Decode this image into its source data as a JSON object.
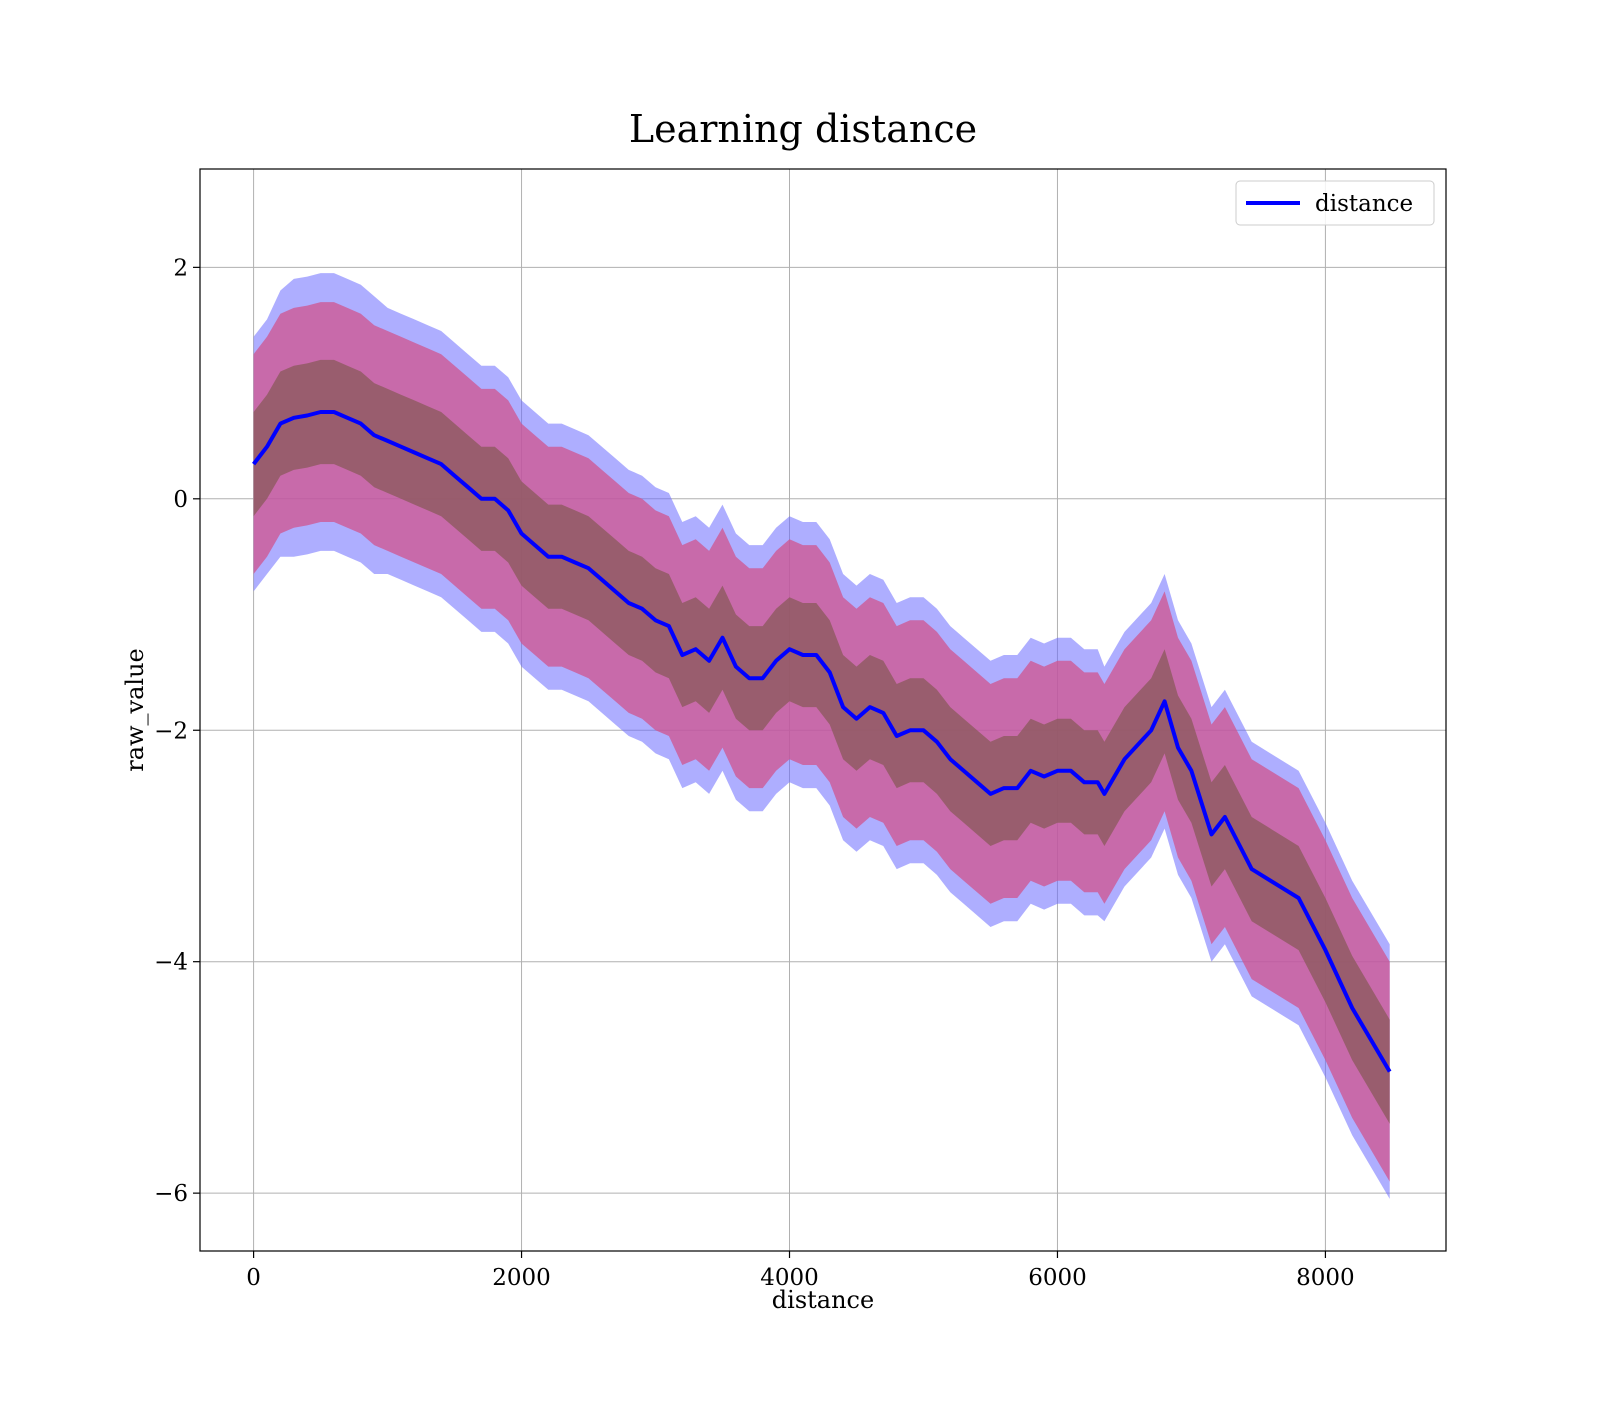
{
  "chart_data": {
    "type": "line",
    "title": "Learning distance",
    "xlabel": "distance",
    "ylabel": "raw_value",
    "xlim": [
      -400,
      8900
    ],
    "ylim": [
      -6.5,
      2.85
    ],
    "xticks": [
      0,
      2000,
      4000,
      6000,
      8000
    ],
    "xtick_labels": [
      "0",
      "2000",
      "4000",
      "6000",
      "8000"
    ],
    "yticks": [
      -6,
      -4,
      -2,
      0,
      2
    ],
    "ytick_labels": [
      "−6",
      "−4",
      "−2",
      "0",
      "2"
    ],
    "grid": true,
    "legend": {
      "placement": "top-right",
      "entries": [
        "distance"
      ]
    },
    "colors": {
      "line": "#0000ff",
      "outer_band": "#6b6bff",
      "middle_band": "#d0538e",
      "inner_band": "#8a5a5a"
    },
    "series": [
      {
        "name": "distance",
        "x": [
          0,
          100,
          200,
          300,
          400,
          500,
          600,
          700,
          800,
          900,
          1000,
          1100,
          1200,
          1300,
          1400,
          1500,
          1600,
          1700,
          1800,
          1900,
          2000,
          2100,
          2200,
          2300,
          2400,
          2500,
          2600,
          2700,
          2800,
          2900,
          3000,
          3100,
          3200,
          3300,
          3400,
          3500,
          3600,
          3700,
          3800,
          3900,
          4000,
          4100,
          4200,
          4300,
          4400,
          4500,
          4600,
          4700,
          4800,
          4900,
          5000,
          5100,
          5200,
          5300,
          5400,
          5500,
          5600,
          5700,
          5800,
          5900,
          6000,
          6100,
          6200,
          6300,
          6350,
          6500,
          6700,
          6800,
          6900,
          7000,
          7150,
          7250,
          7450,
          7800,
          8000,
          8200,
          8480
        ],
        "y": [
          0.3,
          0.45,
          0.65,
          0.7,
          0.72,
          0.75,
          0.75,
          0.7,
          0.65,
          0.55,
          0.5,
          0.45,
          0.4,
          0.35,
          0.3,
          0.2,
          0.1,
          0.0,
          0.0,
          -0.1,
          -0.3,
          -0.4,
          -0.5,
          -0.5,
          -0.55,
          -0.6,
          -0.7,
          -0.8,
          -0.9,
          -0.95,
          -1.05,
          -1.1,
          -1.35,
          -1.3,
          -1.4,
          -1.2,
          -1.45,
          -1.55,
          -1.55,
          -1.4,
          -1.3,
          -1.35,
          -1.35,
          -1.5,
          -1.8,
          -1.9,
          -1.8,
          -1.85,
          -2.05,
          -2.0,
          -2.0,
          -2.1,
          -2.25,
          -2.35,
          -2.45,
          -2.55,
          -2.5,
          -2.5,
          -2.35,
          -2.4,
          -2.35,
          -2.35,
          -2.45,
          -2.45,
          -2.55,
          -2.25,
          -2.0,
          -1.75,
          -2.15,
          -2.35,
          -2.9,
          -2.75,
          -3.2,
          -3.45,
          -3.9,
          -4.4,
          -4.95
        ]
      }
    ],
    "bands": {
      "outer_halfwidth": [
        1.1,
        1.1,
        1.15,
        1.2,
        1.2,
        1.2,
        1.2,
        1.2,
        1.2,
        1.2,
        1.15,
        1.15,
        1.15,
        1.15,
        1.15,
        1.15,
        1.15,
        1.15,
        1.15,
        1.15,
        1.15,
        1.15,
        1.15,
        1.15,
        1.15,
        1.15,
        1.15,
        1.15,
        1.15,
        1.15,
        1.15,
        1.15,
        1.15,
        1.15,
        1.15,
        1.15,
        1.15,
        1.15,
        1.15,
        1.15,
        1.15,
        1.15,
        1.15,
        1.15,
        1.15,
        1.15,
        1.15,
        1.15,
        1.15,
        1.15,
        1.15,
        1.15,
        1.15,
        1.15,
        1.15,
        1.15,
        1.15,
        1.15,
        1.15,
        1.15,
        1.15,
        1.15,
        1.15,
        1.15,
        1.1,
        1.1,
        1.1,
        1.1,
        1.1,
        1.1,
        1.1,
        1.1,
        1.1,
        1.1,
        1.1,
        1.1,
        1.1
      ],
      "middle_halfwidth": [
        0.95,
        0.95,
        0.95,
        0.95,
        0.95,
        0.95,
        0.95,
        0.95,
        0.95,
        0.95,
        0.95,
        0.95,
        0.95,
        0.95,
        0.95,
        0.95,
        0.95,
        0.95,
        0.95,
        0.95,
        0.95,
        0.95,
        0.95,
        0.95,
        0.95,
        0.95,
        0.95,
        0.95,
        0.95,
        0.95,
        0.95,
        0.95,
        0.95,
        0.95,
        0.95,
        0.95,
        0.95,
        0.95,
        0.95,
        0.95,
        0.95,
        0.95,
        0.95,
        0.95,
        0.95,
        0.95,
        0.95,
        0.95,
        0.95,
        0.95,
        0.95,
        0.95,
        0.95,
        0.95,
        0.95,
        0.95,
        0.95,
        0.95,
        0.95,
        0.95,
        0.95,
        0.95,
        0.95,
        0.95,
        0.95,
        0.95,
        0.95,
        0.95,
        0.95,
        0.95,
        0.95,
        0.95,
        0.95,
        0.95,
        0.95,
        0.95,
        0.95
      ],
      "inner_halfwidth": [
        0.45,
        0.45,
        0.45,
        0.45,
        0.45,
        0.45,
        0.45,
        0.45,
        0.45,
        0.45,
        0.45,
        0.45,
        0.45,
        0.45,
        0.45,
        0.45,
        0.45,
        0.45,
        0.45,
        0.45,
        0.45,
        0.45,
        0.45,
        0.45,
        0.45,
        0.45,
        0.45,
        0.45,
        0.45,
        0.45,
        0.45,
        0.45,
        0.45,
        0.45,
        0.45,
        0.45,
        0.45,
        0.45,
        0.45,
        0.45,
        0.45,
        0.45,
        0.45,
        0.45,
        0.45,
        0.45,
        0.45,
        0.45,
        0.45,
        0.45,
        0.45,
        0.45,
        0.45,
        0.45,
        0.45,
        0.45,
        0.45,
        0.45,
        0.45,
        0.45,
        0.45,
        0.45,
        0.45,
        0.45,
        0.45,
        0.45,
        0.45,
        0.45,
        0.45,
        0.45,
        0.45,
        0.45,
        0.45,
        0.45,
        0.45,
        0.45,
        0.45
      ]
    }
  }
}
